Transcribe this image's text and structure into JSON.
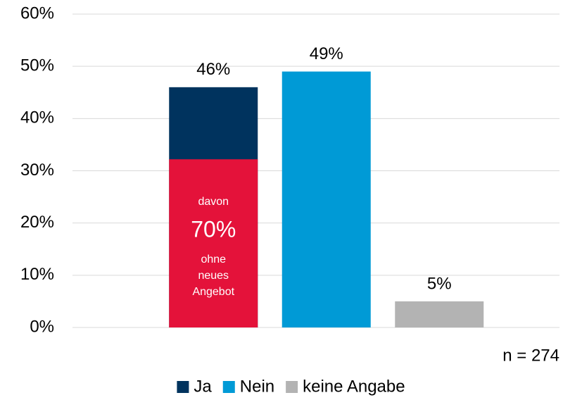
{
  "chart_data": {
    "type": "bar",
    "categories": [
      null,
      null,
      null
    ],
    "series": [
      {
        "name": "Ja",
        "color": "#00335e",
        "values": [
          46,
          null,
          null
        ],
        "value_labels": [
          "46%",
          null,
          null
        ]
      },
      {
        "name": "Nein",
        "color": "#009ad6",
        "values": [
          null,
          49,
          null
        ],
        "value_labels": [
          null,
          "49%",
          null
        ]
      },
      {
        "name": "keine Angabe",
        "color": "#b3b3b3",
        "values": [
          null,
          null,
          5
        ],
        "value_labels": [
          null,
          null,
          "5%"
        ]
      }
    ],
    "highlight": {
      "value": 32.2,
      "color": "#e4123a",
      "texts": [
        "davon",
        "70%",
        "ohne",
        "neues",
        "Angebot"
      ]
    },
    "note": "n = 274",
    "ylim": [
      0,
      60
    ],
    "yticks": [
      {
        "value": 0,
        "label": "0%"
      },
      {
        "value": 10,
        "label": "10%"
      },
      {
        "value": 20,
        "label": "20%"
      },
      {
        "value": 30,
        "label": "30%"
      },
      {
        "value": 40,
        "label": "40%"
      },
      {
        "value": 50,
        "label": "50%"
      },
      {
        "value": 60,
        "label": "60%"
      }
    ],
    "grid": true,
    "legend": "bottom"
  }
}
